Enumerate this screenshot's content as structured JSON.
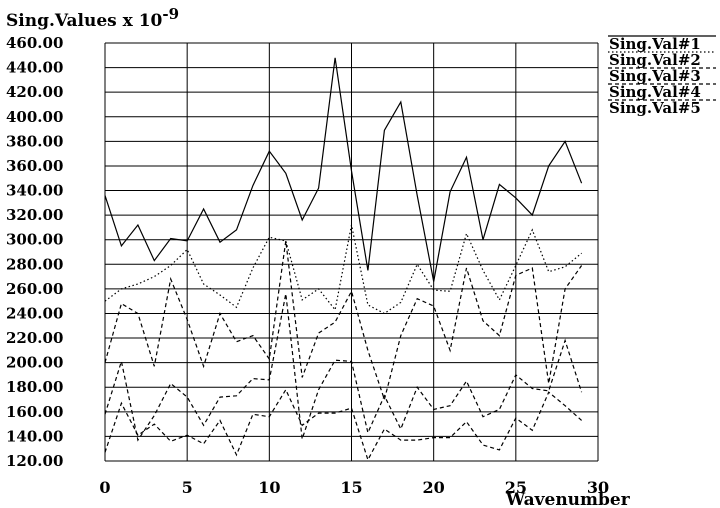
{
  "chart_data": {
    "type": "line",
    "ylabel": "Sing.Values x 10",
    "ylabel_exponent": "-9",
    "xlabel": "Wavenumber",
    "xlim": [
      0,
      30
    ],
    "ylim": [
      120,
      460
    ],
    "x_ticks": [
      "0",
      "5",
      "10",
      "15",
      "20",
      "25",
      "30"
    ],
    "y_ticks": [
      "120.00",
      "140.00",
      "160.00",
      "180.00",
      "200.00",
      "220.00",
      "240.00",
      "260.00",
      "280.00",
      "300.00",
      "320.00",
      "340.00",
      "360.00",
      "380.00",
      "400.00",
      "420.00",
      "440.00",
      "460.00"
    ],
    "grid": true,
    "legend_position": "top-right",
    "x": [
      0,
      1,
      2,
      3,
      4,
      5,
      6,
      7,
      8,
      9,
      10,
      11,
      12,
      13,
      14,
      15,
      16,
      17,
      18,
      19,
      20,
      21,
      22,
      23,
      24,
      25,
      26,
      27,
      28,
      29
    ],
    "series": [
      {
        "name": "Sing.Val#1",
        "style": "solid",
        "values": [
          336,
          295,
          312,
          283,
          301,
          299,
          325,
          298,
          308,
          344,
          372,
          354,
          316,
          342,
          448,
          356,
          275,
          389,
          412,
          336,
          266,
          339,
          367,
          300,
          345,
          334,
          320,
          360,
          380,
          346
        ]
      },
      {
        "name": "Sing.Val#2",
        "style": "dotted",
        "values": [
          250,
          260,
          264,
          270,
          279,
          292,
          264,
          255,
          245,
          277,
          302,
          299,
          251,
          260,
          243,
          312,
          247,
          240,
          249,
          280,
          259,
          258,
          305,
          275,
          251,
          279,
          308,
          274,
          278,
          289
        ]
      },
      {
        "name": "Sing.Val#3",
        "style": "dashed",
        "values": [
          200,
          248,
          240,
          197,
          268,
          235,
          197,
          240,
          217,
          222,
          203,
          299,
          188,
          224,
          233,
          258,
          210,
          170,
          222,
          252,
          246,
          210,
          277,
          234,
          222,
          271,
          277,
          183,
          260,
          279
        ]
      },
      {
        "name": "Sing.Val#4",
        "style": "dashed",
        "values": [
          158,
          201,
          137,
          157,
          183,
          172,
          149,
          172,
          173,
          187,
          186,
          256,
          138,
          178,
          202,
          201,
          143,
          173,
          146,
          180,
          162,
          165,
          185,
          156,
          162,
          190,
          179,
          177,
          218,
          176
        ]
      },
      {
        "name": "Sing.Val#5",
        "style": "dashed",
        "values": [
          127,
          167,
          141,
          150,
          136,
          141,
          134,
          153,
          125,
          158,
          156,
          178,
          149,
          159,
          159,
          163,
          121,
          146,
          137,
          137,
          139,
          139,
          152,
          133,
          129,
          155,
          145,
          176,
          165,
          153
        ]
      }
    ]
  }
}
